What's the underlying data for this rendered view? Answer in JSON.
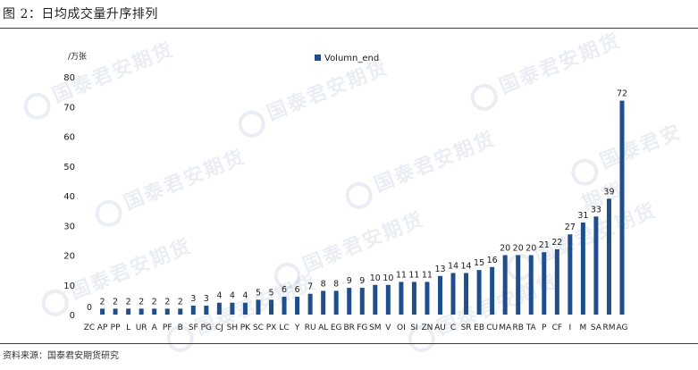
{
  "figure": {
    "title": "图 2：日均成交量升序排列",
    "source": "资料来源：国泰君安期货研究",
    "watermark": "国泰君安期货"
  },
  "colors": {
    "bar": "#1f4e8c",
    "text": "#1a1a1a",
    "rule": "#3a3a3a"
  },
  "chart_data": {
    "type": "bar",
    "unit_label": "/万张",
    "legend": "Volumn_end",
    "legend_position": "top",
    "ylim": [
      0,
      80
    ],
    "yticks": [
      0,
      10,
      20,
      30,
      40,
      50,
      60,
      70,
      80
    ],
    "grid": false,
    "categories": [
      "ZC",
      "AP",
      "PP",
      "L",
      "UR",
      "A",
      "PF",
      "B",
      "SF",
      "PG",
      "CJ",
      "SH",
      "PK",
      "SC",
      "PX",
      "LC",
      "Y",
      "RU",
      "AL",
      "EG",
      "BR",
      "FG",
      "SM",
      "V",
      "OI",
      "SI",
      "ZN",
      "AU",
      "C",
      "SR",
      "EB",
      "CU",
      "MA",
      "RB",
      "TA",
      "P",
      "CF",
      "I",
      "M",
      "SA",
      "RM",
      "AG"
    ],
    "series": [
      {
        "name": "Volumn_end",
        "values": [
          0,
          2,
          2,
          2,
          2,
          2,
          2,
          2,
          3,
          3,
          4,
          4,
          4,
          5,
          5,
          6,
          6,
          7,
          8,
          8,
          9,
          9,
          10,
          10,
          11,
          11,
          11,
          13,
          14,
          14,
          15,
          16,
          20,
          20,
          20,
          21,
          22,
          27,
          31,
          33,
          39,
          72
        ]
      }
    ]
  }
}
